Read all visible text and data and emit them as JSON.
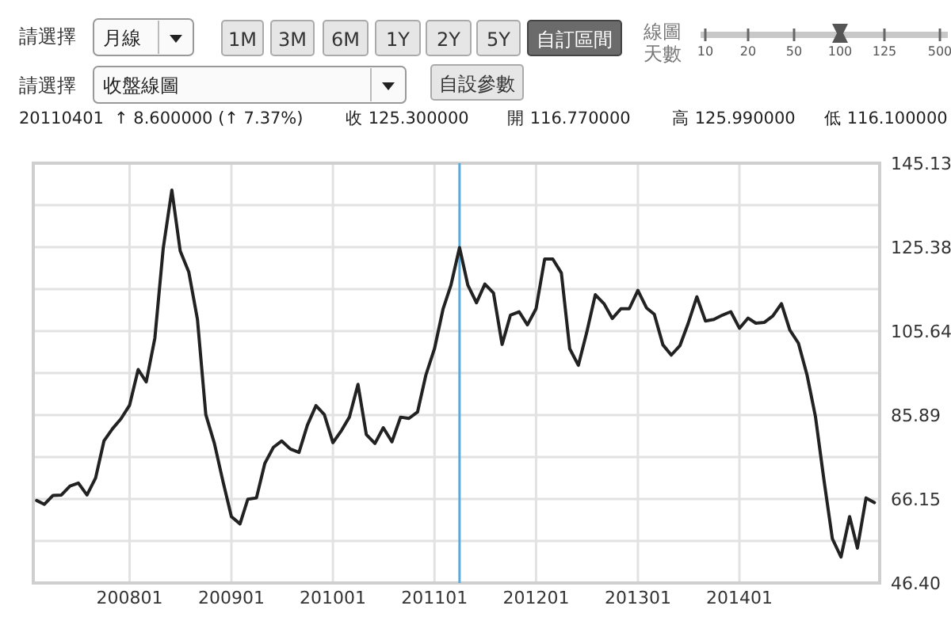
{
  "chart_data": {
    "type": "line",
    "annotations": [
      "請選擇",
      "月線",
      "1M",
      "3M",
      "6M",
      "1Y",
      "2Y",
      "5Y",
      "自訂區間",
      "線圖",
      "天數",
      "10",
      "20",
      "50",
      "100",
      "125",
      "500",
      "請選擇",
      "收盤線圖",
      "自設參數",
      "20110401",
      "↑ 8.600000 (↑ 7.37%)",
      "收 125.300000",
      "開 116.770000",
      "高 125.990000",
      "低 116.100000"
    ],
    "x": [
      "2007-02",
      "2007-03",
      "2007-04",
      "2007-05",
      "2007-06",
      "2007-07",
      "2007-08",
      "2007-09",
      "2007-10",
      "2007-11",
      "2007-12",
      "2008-01",
      "2008-02",
      "2008-03",
      "2008-04",
      "2008-05",
      "2008-06",
      "2008-07",
      "2008-08",
      "2008-09",
      "2008-10",
      "2008-11",
      "2008-12",
      "2009-01",
      "2009-02",
      "2009-03",
      "2009-04",
      "2009-05",
      "2009-06",
      "2009-07",
      "2009-08",
      "2009-09",
      "2009-10",
      "2009-11",
      "2009-12",
      "2010-01",
      "2010-02",
      "2010-03",
      "2010-04",
      "2010-05",
      "2010-06",
      "2010-07",
      "2010-08",
      "2010-09",
      "2010-10",
      "2010-11",
      "2010-12",
      "2011-01",
      "2011-02",
      "2011-03",
      "2011-04",
      "2011-05",
      "2011-06",
      "2011-07",
      "2011-08",
      "2011-09",
      "2011-10",
      "2011-11",
      "2011-12",
      "2012-01",
      "2012-02",
      "2012-03",
      "2012-04",
      "2012-05",
      "2012-06",
      "2012-07",
      "2012-08",
      "2012-09",
      "2012-10",
      "2012-11",
      "2012-12",
      "2013-01",
      "2013-02",
      "2013-03",
      "2013-04",
      "2013-05",
      "2013-06",
      "2013-07",
      "2013-08",
      "2013-09",
      "2013-10",
      "2013-11",
      "2013-12",
      "2014-01",
      "2014-02",
      "2014-03",
      "2014-04",
      "2014-05",
      "2014-06",
      "2014-07",
      "2014-08",
      "2014-09",
      "2014-10",
      "2014-11",
      "2014-12",
      "2015-01",
      "2015-02",
      "2015-03",
      "2015-04",
      "2015-05"
    ],
    "series": [
      {
        "color": "#222222",
        "values": [
          65.8,
          64.9,
          67.0,
          67.1,
          69.2,
          69.9,
          67.1,
          71.1,
          79.8,
          82.7,
          85.0,
          88.2,
          96.6,
          93.7,
          104.0,
          125.1,
          138.8,
          124.5,
          119.5,
          108.4,
          86.0,
          79.2,
          70.5,
          62.0,
          60.3,
          66.1,
          66.4,
          74.5,
          78.3,
          79.8,
          77.9,
          77.1,
          83.5,
          88.1,
          86.0,
          79.4,
          82.3,
          85.4,
          93.1,
          81.3,
          79.2,
          82.9,
          79.6,
          85.4,
          85.1,
          86.6,
          95.3,
          101.5,
          110.9,
          116.4,
          125.3,
          116.4,
          112.3,
          116.7,
          114.6,
          102.5,
          109.4,
          110.2,
          107.1,
          110.9,
          122.6,
          122.6,
          119.3,
          101.5,
          97.6,
          105.3,
          114.2,
          112.1,
          108.6,
          110.9,
          110.9,
          115.2,
          111.1,
          109.6,
          102.4,
          100.0,
          102.2,
          107.5,
          113.7,
          108.0,
          108.4,
          109.4,
          110.2,
          106.3,
          108.7,
          107.5,
          107.7,
          109.2,
          112.1,
          105.9,
          102.8,
          95.3,
          85.6,
          70.5,
          56.8,
          52.5,
          62.0,
          54.6,
          66.4,
          65.3
        ]
      }
    ],
    "xlim": [
      "2007-01-20",
      "2015-05-20"
    ],
    "xticks": [
      {
        "value": "2008-01",
        "label": "200801"
      },
      {
        "value": "2009-01",
        "label": "200901"
      },
      {
        "value": "2010-01",
        "label": "201001"
      },
      {
        "value": "2011-01",
        "label": "201101"
      },
      {
        "value": "2012-01",
        "label": "201201"
      },
      {
        "value": "2013-01",
        "label": "201301"
      },
      {
        "value": "2014-01",
        "label": "201401"
      }
    ],
    "ylim": [
      46.4,
      145.13
    ],
    "yticks": [
      {
        "value": 46.4,
        "label": "46.40"
      },
      {
        "value": 56.27,
        "label": null
      },
      66.15,
      {
        "value": 76.02,
        "label": null
      },
      85.89,
      {
        "value": 95.77,
        "label": null
      },
      105.64,
      {
        "value": 115.51,
        "label": null
      },
      125.38,
      {
        "value": 135.26,
        "label": null
      },
      145.13
    ],
    "ref_lines": [
      {
        "axis": "x",
        "value": "2011-04",
        "color": "#5aa9d6"
      }
    ],
    "grid": true,
    "line_style": "solid",
    "marker": "none"
  }
}
